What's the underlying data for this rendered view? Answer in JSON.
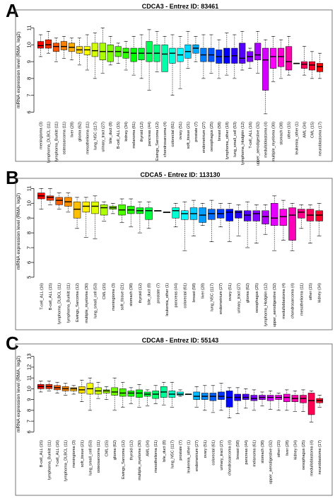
{
  "panels": [
    {
      "letter": "A"
    },
    {
      "letter": "B"
    },
    {
      "letter": "C"
    }
  ],
  "chart_data": [
    {
      "type": "box",
      "title": "CDCA3  -  Entrez ID: 83461",
      "ylabel": "mRNA expression level (RMA, log2)",
      "ylim": [
        5.6,
        11.4
      ],
      "yticks": [
        6,
        7,
        8,
        9,
        10,
        11
      ],
      "categories": [
        "meningioma (3)",
        "lymphoma_DLBCL (11)",
        "lymphoma_Burkitt (11)",
        "osteosarcoma (11)",
        "liver (28)",
        "glioma (62)",
        "mesothelioma (11)",
        "lung_NSC (117)",
        "urinary_tract (27)",
        "bile_duct (8)",
        "B-cell_ALL (15)",
        "kidney (34)",
        "melanoma (61)",
        "thyroid (12)",
        "pancreas (44)",
        "Ewings_Sarcoma (12)",
        "chondrosarcoma (4)",
        "colorectal (61)",
        "ovary (51)",
        "soft_tissue (21)",
        "prostate (7)",
        "endometrium (27)",
        "oesophagus (25)",
        "breast (58)",
        "lymphoma_other (18)",
        "lung_small_cell (53)",
        "lymphoma_Hodgkin (12)",
        "T-cell_ALL (16)",
        "upper_aerodigestive (32)",
        "medulloblastoma (4)",
        "multiple_myeloma (30)",
        "stomach (38)",
        "other (15)",
        "leukemia_other (1)",
        "AML (34)",
        "CML (15)",
        "neuroblastoma (17)"
      ],
      "series": [
        {
          "stats": [
            [
              9.3,
              9.8,
              9.95,
              10.2,
              10.6
            ],
            [
              9.5,
              9.8,
              10.0,
              10.3,
              10.8
            ],
            [
              9.0,
              9.6,
              9.9,
              10.1,
              10.4
            ],
            [
              9.2,
              9.7,
              9.9,
              10.2,
              10.5
            ],
            [
              9.1,
              9.6,
              9.85,
              10.1,
              10.4
            ],
            [
              8.8,
              9.5,
              9.7,
              9.9,
              10.4
            ],
            [
              8.5,
              9.4,
              9.7,
              9.9,
              10.6
            ],
            [
              8.0,
              9.3,
              9.65,
              10.1,
              10.7
            ],
            [
              8.3,
              9.1,
              9.6,
              10.1,
              11.0
            ],
            [
              8.8,
              9.0,
              9.6,
              10.0,
              10.5
            ],
            [
              8.9,
              9.3,
              9.6,
              9.9,
              10.1
            ],
            [
              8.5,
              9.2,
              9.55,
              9.8,
              10.2
            ],
            [
              8.2,
              9.0,
              9.5,
              9.8,
              10.5
            ],
            [
              8.0,
              9.1,
              9.5,
              9.8,
              10.6
            ],
            [
              7.3,
              9.0,
              9.5,
              10.2,
              10.9
            ],
            [
              8.4,
              9.0,
              9.5,
              10.0,
              10.8
            ],
            [
              8.5,
              8.4,
              9.45,
              10.0,
              10.5
            ],
            [
              7.0,
              8.9,
              9.5,
              9.8,
              10.6
            ],
            [
              7.4,
              9.0,
              9.4,
              9.8,
              10.5
            ],
            [
              8.6,
              9.2,
              9.6,
              10.0,
              10.8
            ],
            [
              9.0,
              9.5,
              9.8,
              10.0,
              10.5
            ],
            [
              8.0,
              9.0,
              9.4,
              9.8,
              10.6
            ],
            [
              8.3,
              9.0,
              9.4,
              9.8,
              10.6
            ],
            [
              8.0,
              8.9,
              9.3,
              9.7,
              10.3
            ],
            [
              8.2,
              8.9,
              9.3,
              9.8,
              10.7
            ],
            [
              8.0,
              8.9,
              9.35,
              9.8,
              10.6
            ],
            [
              8.5,
              8.9,
              9.2,
              10.1,
              10.8
            ],
            [
              8.6,
              9.0,
              9.3,
              9.6,
              9.8
            ],
            [
              8.3,
              9.1,
              9.4,
              10.1,
              10.8
            ],
            [
              5.9,
              7.3,
              9.1,
              9.8,
              10.3
            ],
            [
              7.8,
              8.6,
              9.3,
              9.8,
              10.5
            ],
            [
              8.0,
              8.7,
              9.3,
              9.8,
              10.3
            ],
            [
              8.2,
              8.5,
              9.0,
              9.9,
              10.5
            ],
            [
              8.9,
              8.9,
              8.9,
              8.9,
              8.9
            ],
            [
              8.2,
              8.6,
              8.85,
              9.0,
              9.9
            ],
            [
              8.0,
              8.5,
              8.8,
              9.0,
              9.6
            ],
            [
              8.0,
              8.4,
              8.7,
              8.9,
              9.5
            ]
          ]
        }
      ],
      "colors": [
        "#ff0000",
        "#ff2a00",
        "#ff5500",
        "#ff7f00",
        "#ffaa00",
        "#ffd400",
        "#ffff00",
        "#d4ff00",
        "#aaff00",
        "#7fff00",
        "#55ff00",
        "#2aff00",
        "#00ff00",
        "#00ff2a",
        "#00ff55",
        "#00ff7f",
        "#00ffaa",
        "#00ffd4",
        "#00ffff",
        "#00d4ff",
        "#00aaff",
        "#007fff",
        "#0055ff",
        "#002aff",
        "#0000ff",
        "#2a00ff",
        "#5500ff",
        "#7f00ff",
        "#aa00ff",
        "#d400ff",
        "#ff00ff",
        "#ff00d4",
        "#ff00aa",
        "#ff007f",
        "#ff0055",
        "#ff002a",
        "#ff0000"
      ]
    },
    {
      "type": "box",
      "title": "CDCA5  -  Entrez ID: 113130",
      "ylabel": "mRNA expression level (RMA, log2)",
      "ylim": [
        4.8,
        11.4
      ],
      "yticks": [
        5,
        6,
        7,
        8,
        9,
        10,
        11
      ],
      "categories": [
        "T-cell_ALL (16)",
        "B-cell_ALL (15)",
        "lymphoma_DLBCL (11)",
        "lymphoma_Burkitt (11)",
        "Ewings_Sarcoma (12)",
        "multiple_myeloma (30)",
        "lung_small_cell (53)",
        "CML (15)",
        "meningioma (3)",
        "soft_tissue (21)",
        "stomach (38)",
        "thyroid (12)",
        "bile_duct (8)",
        "prostate (7)",
        "leukemia_other (1)",
        "pancreas (44)",
        "colorectal (61)",
        "breast (58)",
        "liver (28)",
        "lung_NSC (117)",
        "endometrium (27)",
        "ovary (51)",
        "urinary_tract (27)",
        "glioma (62)",
        "oesophagus (25)",
        "lymphoma_Hodgkin (12)",
        "upper_aerodigestive (32)",
        "medulloblastoma (4)",
        "chondrosarcoma (4)",
        "mesothelioma (11)",
        "other (15)",
        "kidney (34)"
      ],
      "series": [
        {
          "stats": [
            [
              9.6,
              10.3,
              10.5,
              10.7,
              11.0
            ],
            [
              9.9,
              10.2,
              10.4,
              10.5,
              11.0
            ],
            [
              9.6,
              9.9,
              10.2,
              10.4,
              10.7
            ],
            [
              9.4,
              9.8,
              10.1,
              10.4,
              10.7
            ],
            [
              8.3,
              9.0,
              9.6,
              10.1,
              10.4
            ],
            [
              7.7,
              9.4,
              9.8,
              10.1,
              10.4
            ],
            [
              7.6,
              9.3,
              9.8,
              10.1,
              10.5
            ],
            [
              8.8,
              9.2,
              9.7,
              9.9,
              10.1
            ],
            [
              9.3,
              9.6,
              9.7,
              9.8,
              10.0
            ],
            [
              8.7,
              9.2,
              9.55,
              9.9,
              10.3
            ],
            [
              8.4,
              9.3,
              9.55,
              9.8,
              10.3
            ],
            [
              8.0,
              9.3,
              9.5,
              9.7,
              10.1
            ],
            [
              8.3,
              8.9,
              9.5,
              9.7,
              10.1
            ],
            [
              9.5,
              9.5,
              9.5,
              9.5,
              9.5
            ],
            [
              9.4,
              9.4,
              9.4,
              9.4,
              9.4
            ],
            [
              8.4,
              9.0,
              9.5,
              9.7,
              10.0
            ],
            [
              6.8,
              8.9,
              9.3,
              9.5,
              10.1
            ],
            [
              7.8,
              8.9,
              9.3,
              9.7,
              10.2
            ],
            [
              8.5,
              8.7,
              9.2,
              9.7,
              10.0
            ],
            [
              7.4,
              8.9,
              9.3,
              9.6,
              10.2
            ],
            [
              8.4,
              9.0,
              9.3,
              9.6,
              10.0
            ],
            [
              7.4,
              8.8,
              9.4,
              9.6,
              10.0
            ],
            [
              7.8,
              9.0,
              9.4,
              9.5,
              9.9
            ],
            [
              7.0,
              8.8,
              9.2,
              9.5,
              10.1
            ],
            [
              7.3,
              8.8,
              9.3,
              9.5,
              9.9
            ],
            [
              7.9,
              8.6,
              9.1,
              9.5,
              9.9
            ],
            [
              6.8,
              8.5,
              9.0,
              10.0,
              10.5
            ],
            [
              7.5,
              8.5,
              9.1,
              9.6,
              10.2
            ],
            [
              6.8,
              7.5,
              9.2,
              9.7,
              10.0
            ],
            [
              8.3,
              9.0,
              9.4,
              9.6,
              9.9
            ],
            [
              7.3,
              8.8,
              9.2,
              9.6,
              9.9
            ],
            [
              7.8,
              8.8,
              9.2,
              9.5,
              10.0
            ]
          ]
        }
      ],
      "colors": [
        "#ff0000",
        "#ff3000",
        "#ff6000",
        "#ff9000",
        "#ffc000",
        "#fff000",
        "#deff00",
        "#aeff00",
        "#7eff00",
        "#4eff00",
        "#1eff00",
        "#00ff12",
        "#00ff42",
        "#00ff72",
        "#00ffa2",
        "#00ffd2",
        "#00fcff",
        "#00ccff",
        "#009cff",
        "#006cff",
        "#003cff",
        "#000cff",
        "#2400ff",
        "#5400ff",
        "#8400ff",
        "#b400ff",
        "#e400ff",
        "#ff00ea",
        "#ff00ba",
        "#ff008a",
        "#ff005a",
        "#ff002a"
      ]
    },
    {
      "type": "box",
      "title": "CDCA8  -  Entrez ID: 55143",
      "ylabel": "mRNA expression level (RMA, log2)",
      "ylim": [
        5.5,
        13.5
      ],
      "yticks": [
        6,
        7,
        8,
        9,
        10,
        11,
        12,
        13
      ],
      "categories": [
        "B-cell_ALL (15)",
        "lymphoma_Burkitt (11)",
        "T-cell_ALL (16)",
        "lymphoma_DLBCL (11)",
        "meningioma (3)",
        "soft_tissue (21)",
        "lung_small_cell (53)",
        "osteosarcoma (11)",
        "CML (15)",
        "glioma (62)",
        "Ewings_Sarcoma (12)",
        "thyroid (12)",
        "multiple_myeloma (30)",
        "AML (34)",
        "mesothelioma (11)",
        "bile_duct (8)",
        "lung_NSC (117)",
        "prostate (7)",
        "leukemia_other (1)",
        "endometrium (27)",
        "ovary (51)",
        "colorectal (61)",
        "urinary_tract (27)",
        "chondrosarcoma (4)",
        "breast (58)",
        "pancreas (44)",
        "melanoma (61)",
        "stomach (38)",
        "upper_aerodigestive (32)",
        "other (15)",
        "liver (28)",
        "kidney (34)",
        "oesophagus (25)",
        "medulloblastoma (4)",
        "neuroblastoma (17)"
      ],
      "series": [
        {
          "stats": [
            [
              9.7,
              10.0,
              10.2,
              10.4,
              10.7
            ],
            [
              9.8,
              10.0,
              10.2,
              10.4,
              10.7
            ],
            [
              9.6,
              9.9,
              10.1,
              10.3,
              10.6
            ],
            [
              9.4,
              9.8,
              10.0,
              10.2,
              10.5
            ],
            [
              9.5,
              9.8,
              10.0,
              10.1,
              10.3
            ],
            [
              8.8,
              9.6,
              9.9,
              10.2,
              10.8
            ],
            [
              8.0,
              9.5,
              10.0,
              10.5,
              11.0
            ],
            [
              9.1,
              9.5,
              9.8,
              10.1,
              10.6
            ],
            [
              9.0,
              9.6,
              9.8,
              9.9,
              10.2
            ],
            [
              8.0,
              9.4,
              9.7,
              10.1,
              11.0
            ],
            [
              8.3,
              9.3,
              9.6,
              10.0,
              10.6
            ],
            [
              8.6,
              9.3,
              9.6,
              9.8,
              10.1
            ],
            [
              8.3,
              9.2,
              9.6,
              9.9,
              10.4
            ],
            [
              8.4,
              9.3,
              9.5,
              9.7,
              9.9
            ],
            [
              8.6,
              9.1,
              9.5,
              9.8,
              10.3
            ],
            [
              8.5,
              9.2,
              9.7,
              10.2,
              10.6
            ],
            [
              8.3,
              9.2,
              9.5,
              9.8,
              10.6
            ],
            [
              9.3,
              9.4,
              9.5,
              9.7,
              9.9
            ],
            [
              9.5,
              9.5,
              9.5,
              9.5,
              9.5
            ],
            [
              8.3,
              9.0,
              9.3,
              9.7,
              10.2
            ],
            [
              8.0,
              9.0,
              9.3,
              9.6,
              10.3
            ],
            [
              7.8,
              8.9,
              9.3,
              9.6,
              10.3
            ],
            [
              8.0,
              9.0,
              9.3,
              9.7,
              10.5
            ],
            [
              7.3,
              8.3,
              9.2,
              9.8,
              10.1
            ],
            [
              7.7,
              8.9,
              9.2,
              9.5,
              10.1
            ],
            [
              8.2,
              9.0,
              9.2,
              9.5,
              10.0
            ],
            [
              8.0,
              8.9,
              9.1,
              9.4,
              9.9
            ],
            [
              8.4,
              9.0,
              9.2,
              9.4,
              9.7
            ],
            [
              8.1,
              8.9,
              9.2,
              9.4,
              9.8
            ],
            [
              8.0,
              9.0,
              9.2,
              9.4,
              9.6
            ],
            [
              8.0,
              8.8,
              9.2,
              9.5,
              9.9
            ],
            [
              7.9,
              8.8,
              9.1,
              9.4,
              9.8
            ],
            [
              7.9,
              8.7,
              9.1,
              9.4,
              9.9
            ],
            [
              6.9,
              7.6,
              8.9,
              9.6,
              9.8
            ],
            [
              8.3,
              8.7,
              8.9,
              9.1,
              9.4
            ]
          ]
        }
      ],
      "colors": [
        "#ff0000",
        "#ff2c00",
        "#ff5800",
        "#ff8400",
        "#ffb000",
        "#ffdc00",
        "#f6ff00",
        "#caff00",
        "#9eff00",
        "#72ff00",
        "#46ff00",
        "#1aff00",
        "#00ff12",
        "#00ff3e",
        "#00ff6a",
        "#00ff96",
        "#00ffc2",
        "#00ffee",
        "#00e4ff",
        "#00b8ff",
        "#008cff",
        "#0060ff",
        "#0034ff",
        "#0008ff",
        "#2200ff",
        "#4e00ff",
        "#7a00ff",
        "#a600ff",
        "#d200ff",
        "#fe00ff",
        "#ff00d6",
        "#ff00aa",
        "#ff007e",
        "#ff0052",
        "#ff0026"
      ]
    }
  ]
}
